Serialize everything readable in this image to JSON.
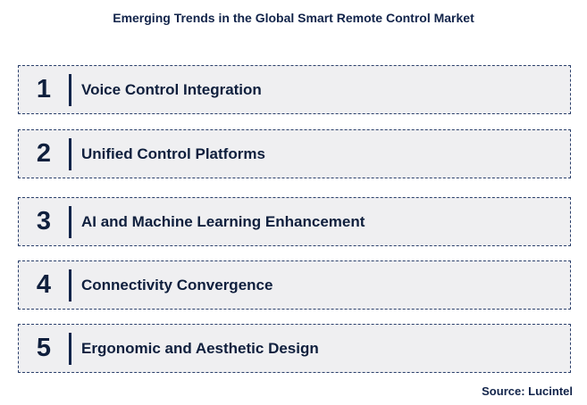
{
  "title": "Emerging Trends in the Global Smart Remote Control Market",
  "trends": [
    {
      "number": "1",
      "label": "Voice Control Integration"
    },
    {
      "number": "2",
      "label": "Unified Control Platforms"
    },
    {
      "number": "3",
      "label": "AI and Machine Learning Enhancement"
    },
    {
      "number": "4",
      "label": "Connectivity Convergence"
    },
    {
      "number": "5",
      "label": "Ergonomic and Aesthetic Design"
    }
  ],
  "source": "Source: Lucintel",
  "colors": {
    "text": "#0f1f3d",
    "box_background": "#efeff1",
    "border": "#2a3f6b"
  }
}
